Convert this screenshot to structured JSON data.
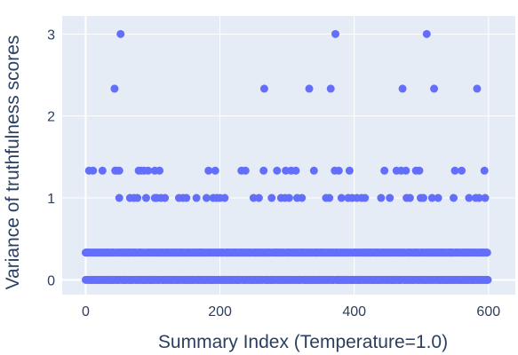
{
  "chart_data": {
    "type": "scatter",
    "title": "",
    "xlabel": "Summary Index (Temperature=1.0)",
    "ylabel": "Variance of truthfulness scores",
    "xlim": [
      -35,
      640
    ],
    "ylim": [
      -0.18,
      3.22
    ],
    "x_ticks": [
      0,
      200,
      400,
      600
    ],
    "x_tick_labels": [
      "0",
      "200",
      "400",
      "600"
    ],
    "y_ticks": [
      0,
      1,
      2,
      3
    ],
    "y_tick_labels": [
      "0",
      "1",
      "2",
      "3"
    ],
    "grid": true,
    "legend": "none",
    "colors": {
      "marker": "#636efa",
      "plot_background": "#e5ecf6",
      "grid": "#ffffff",
      "text": "#2a3f5f"
    },
    "series": [
      {
        "values_note_free": true,
        "x_range": [
          0,
          599
        ],
        "baseline_values": [
          0,
          0.333
        ],
        "points": [
          {
            "x": 5,
            "y": 1.333
          },
          {
            "x": 11,
            "y": 1.333
          },
          {
            "x": 25,
            "y": 1.333
          },
          {
            "x": 44,
            "y": 1.333
          },
          {
            "x": 46,
            "y": 1.333
          },
          {
            "x": 50,
            "y": 1.333
          },
          {
            "x": 79,
            "y": 1.333
          },
          {
            "x": 83,
            "y": 1.333
          },
          {
            "x": 87,
            "y": 1.333
          },
          {
            "x": 93,
            "y": 1.333
          },
          {
            "x": 103,
            "y": 1.333
          },
          {
            "x": 110,
            "y": 1.333
          },
          {
            "x": 183,
            "y": 1.333
          },
          {
            "x": 193,
            "y": 1.333
          },
          {
            "x": 232,
            "y": 1.333
          },
          {
            "x": 238,
            "y": 1.333
          },
          {
            "x": 265,
            "y": 1.333
          },
          {
            "x": 285,
            "y": 1.333
          },
          {
            "x": 298,
            "y": 1.333
          },
          {
            "x": 306,
            "y": 1.333
          },
          {
            "x": 313,
            "y": 1.333
          },
          {
            "x": 340,
            "y": 1.333
          },
          {
            "x": 371,
            "y": 1.333
          },
          {
            "x": 377,
            "y": 1.333
          },
          {
            "x": 393,
            "y": 1.333
          },
          {
            "x": 445,
            "y": 1.333
          },
          {
            "x": 463,
            "y": 1.333
          },
          {
            "x": 470,
            "y": 1.333
          },
          {
            "x": 477,
            "y": 1.333
          },
          {
            "x": 492,
            "y": 1.333
          },
          {
            "x": 497,
            "y": 1.333
          },
          {
            "x": 550,
            "y": 1.333
          },
          {
            "x": 560,
            "y": 1.333
          },
          {
            "x": 594,
            "y": 1.333
          },
          {
            "x": 50,
            "y": 1
          },
          {
            "x": 66,
            "y": 1
          },
          {
            "x": 72,
            "y": 1
          },
          {
            "x": 77,
            "y": 1
          },
          {
            "x": 90,
            "y": 1
          },
          {
            "x": 103,
            "y": 1
          },
          {
            "x": 106,
            "y": 1
          },
          {
            "x": 112,
            "y": 1
          },
          {
            "x": 118,
            "y": 1
          },
          {
            "x": 139,
            "y": 1
          },
          {
            "x": 145,
            "y": 1
          },
          {
            "x": 150,
            "y": 1
          },
          {
            "x": 165,
            "y": 1
          },
          {
            "x": 180,
            "y": 1
          },
          {
            "x": 190,
            "y": 1
          },
          {
            "x": 195,
            "y": 1
          },
          {
            "x": 200,
            "y": 1
          },
          {
            "x": 207,
            "y": 1
          },
          {
            "x": 250,
            "y": 1
          },
          {
            "x": 258,
            "y": 1
          },
          {
            "x": 277,
            "y": 1
          },
          {
            "x": 291,
            "y": 1
          },
          {
            "x": 297,
            "y": 1
          },
          {
            "x": 303,
            "y": 1
          },
          {
            "x": 315,
            "y": 1
          },
          {
            "x": 322,
            "y": 1
          },
          {
            "x": 358,
            "y": 1
          },
          {
            "x": 363,
            "y": 1
          },
          {
            "x": 381,
            "y": 1
          },
          {
            "x": 391,
            "y": 1
          },
          {
            "x": 397,
            "y": 1
          },
          {
            "x": 404,
            "y": 1
          },
          {
            "x": 411,
            "y": 1
          },
          {
            "x": 416,
            "y": 1
          },
          {
            "x": 440,
            "y": 1
          },
          {
            "x": 453,
            "y": 1
          },
          {
            "x": 478,
            "y": 1
          },
          {
            "x": 483,
            "y": 1
          },
          {
            "x": 499,
            "y": 1
          },
          {
            "x": 503,
            "y": 1
          },
          {
            "x": 516,
            "y": 1
          },
          {
            "x": 525,
            "y": 1
          },
          {
            "x": 548,
            "y": 1
          },
          {
            "x": 571,
            "y": 1
          },
          {
            "x": 581,
            "y": 1
          },
          {
            "x": 586,
            "y": 1
          },
          {
            "x": 595,
            "y": 1
          },
          {
            "x": 43,
            "y": 2.333
          },
          {
            "x": 266,
            "y": 2.333
          },
          {
            "x": 333,
            "y": 2.333
          },
          {
            "x": 365,
            "y": 2.333
          },
          {
            "x": 472,
            "y": 2.333
          },
          {
            "x": 519,
            "y": 2.333
          },
          {
            "x": 583,
            "y": 2.333
          },
          {
            "x": 52,
            "y": 3
          },
          {
            "x": 372,
            "y": 3
          },
          {
            "x": 508,
            "y": 3
          }
        ]
      }
    ]
  }
}
